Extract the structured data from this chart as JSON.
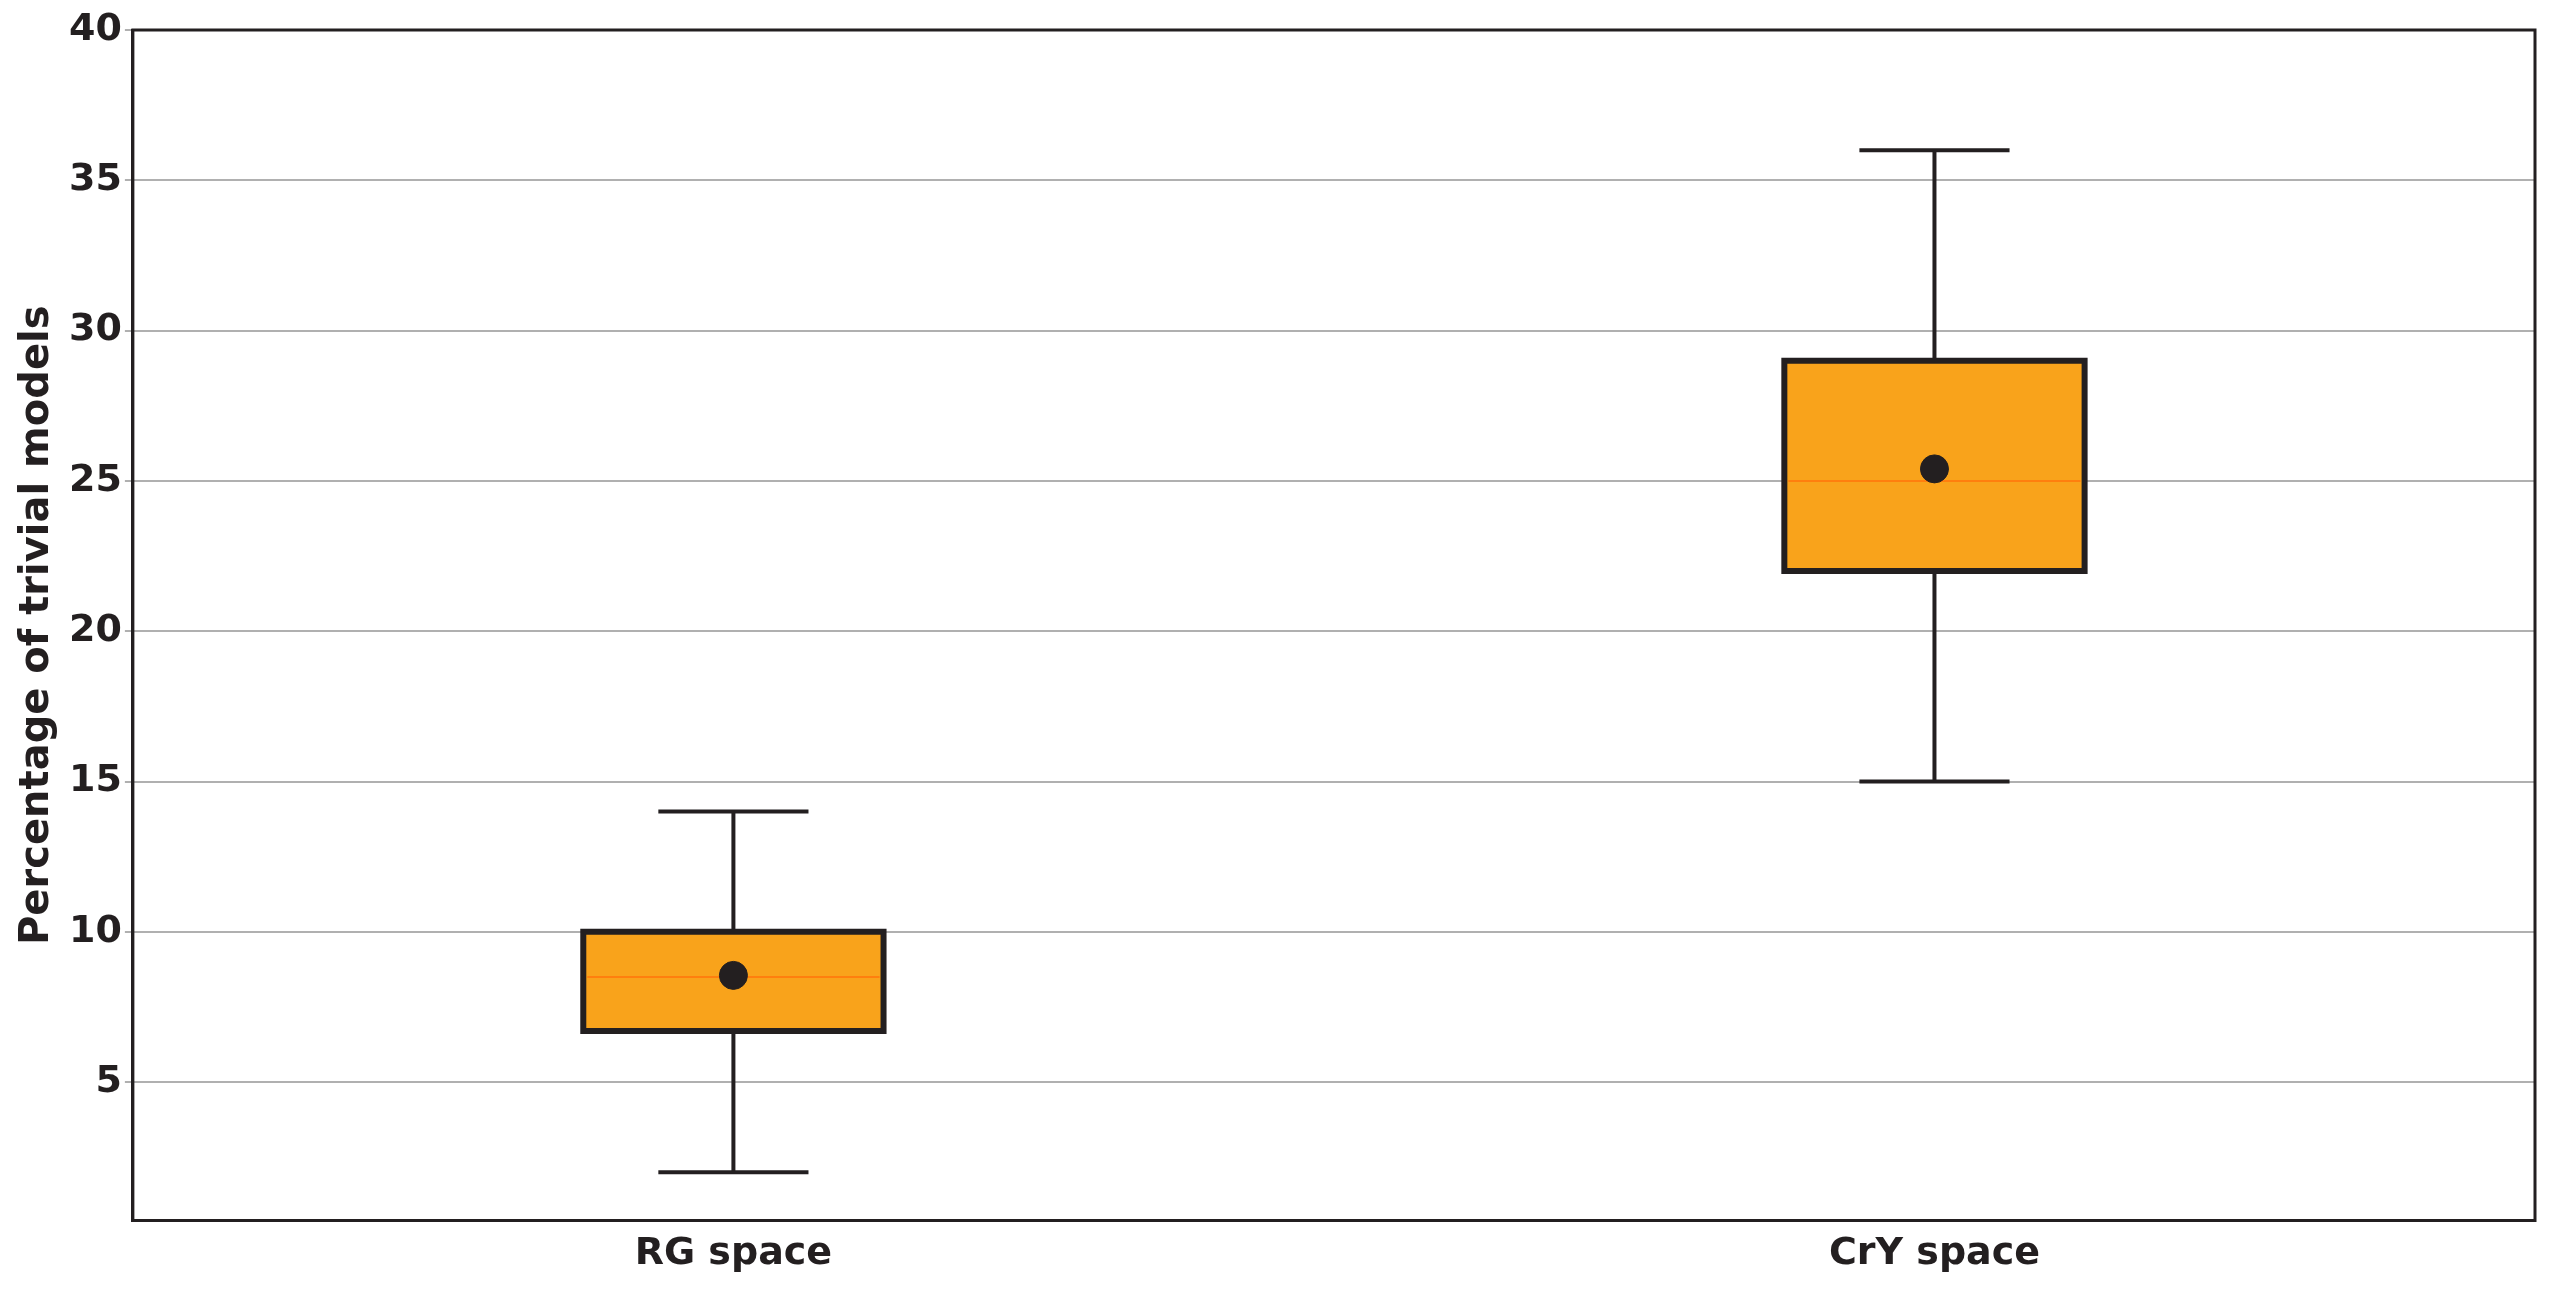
{
  "chart_data": {
    "type": "box",
    "ylabel": "Percentage of trivial models",
    "categories": [
      "RG space",
      "CrY space"
    ],
    "color": "#f9a31b",
    "boxes": [
      {
        "low": 2,
        "q1": 6.7,
        "median": 8.5,
        "q3": 10,
        "high": 14,
        "mean": 8.55
      },
      {
        "low": 15,
        "q1": 22,
        "median": 25,
        "q3": 29,
        "high": 36,
        "mean": 25.4
      }
    ],
    "ylim": [
      0.4,
      40
    ],
    "yticks": [
      5,
      10,
      15,
      20,
      25,
      30,
      35,
      40
    ],
    "grid": "y",
    "legend": false
  }
}
